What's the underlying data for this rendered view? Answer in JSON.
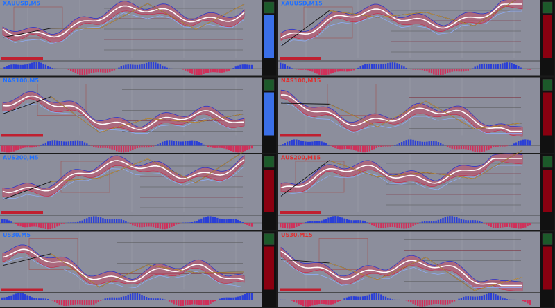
{
  "panels": [
    {
      "label": "XAUUSD,M5"
    },
    {
      "label": "XAUUSD,M15"
    },
    {
      "label": "NAS100,M5"
    },
    {
      "label": "NAS100,M15"
    },
    {
      "label": "AUS200,M5"
    },
    {
      "label": "AUS200,M15"
    },
    {
      "label": "US30,M5"
    },
    {
      "label": "US30,M15"
    }
  ]
}
